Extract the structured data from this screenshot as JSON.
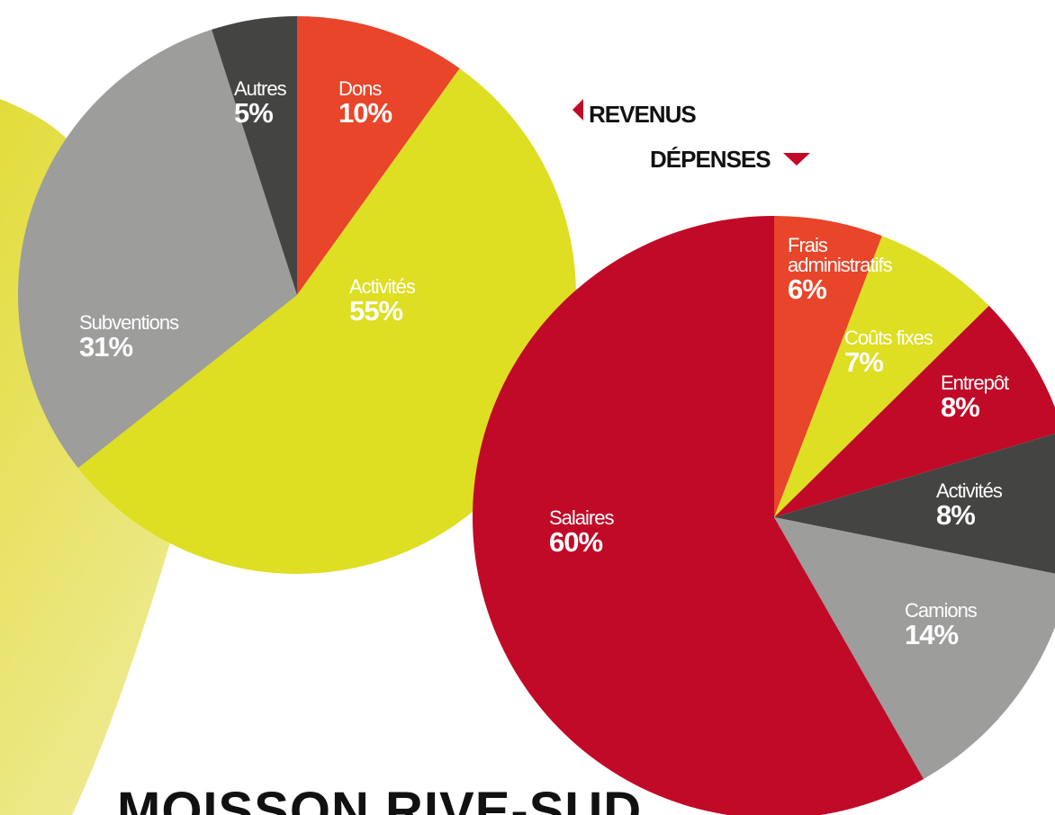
{
  "title": "MOISSON RIVE-SUD",
  "chart_data": [
    {
      "type": "pie",
      "title": "REVENUS",
      "categories": [
        "Dons",
        "Activités",
        "Subventions",
        "Autres"
      ],
      "values": [
        10,
        55,
        31,
        5
      ],
      "value_labels": [
        "10%",
        "55%",
        "31%",
        "5%"
      ],
      "colors": [
        "#e8452a",
        "#dede22",
        "#9d9d9c",
        "#444443"
      ]
    },
    {
      "type": "pie",
      "title": "DÉPENSES",
      "categories": [
        "Frais administratifs",
        "Coûts fixes",
        "Entrepôt",
        "Activités",
        "Camions",
        "Salaires"
      ],
      "values": [
        6,
        7,
        8,
        8,
        14,
        60
      ],
      "value_labels": [
        "6%",
        "7%",
        "8%",
        "8%",
        "14%",
        "60%"
      ],
      "colors": [
        "#e8452a",
        "#dede22",
        "#c00a27",
        "#444443",
        "#9d9d9c",
        "#c00a27"
      ]
    }
  ]
}
